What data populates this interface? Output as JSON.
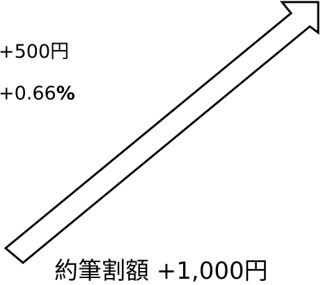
{
  "price_change": {
    "amount": "+500円",
    "percent_value": "+0.66",
    "percent_sign": "%"
  },
  "bottom_text": "約筆割額 +1,000円",
  "arrow": {
    "direction": "up-right",
    "stroke_color": "#000000",
    "fill_color": "#ffffff"
  }
}
